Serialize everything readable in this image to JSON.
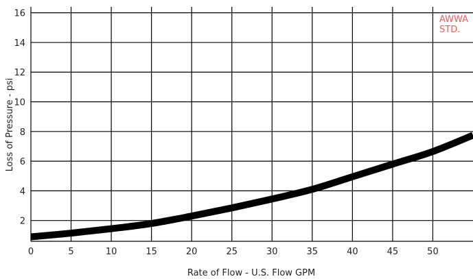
{
  "chart_data": {
    "type": "line",
    "title": "",
    "xlabel": "Rate of Flow - U.S. Flow GPM",
    "ylabel": "Loss of Pressure - psi",
    "xlim": [
      0,
      55
    ],
    "ylim": [
      0.6,
      16.4
    ],
    "xticks": [
      0,
      5,
      10,
      15,
      20,
      25,
      30,
      35,
      40,
      45,
      50
    ],
    "yticks": [
      2,
      4,
      6,
      8,
      10,
      12,
      14,
      16
    ],
    "grid": true,
    "annotations": [
      "AWWA",
      "STD."
    ],
    "colors": {
      "curve": "#000000",
      "grid": "#000000",
      "annotation": "#e8605d"
    },
    "series": [
      {
        "x": [
          0,
          5,
          10,
          15,
          20,
          25,
          30,
          35,
          40,
          45,
          50,
          55
        ],
        "y": [
          0.9,
          1.15,
          1.45,
          1.8,
          2.3,
          2.85,
          3.45,
          4.1,
          4.95,
          5.8,
          6.65,
          7.75
        ]
      }
    ]
  }
}
